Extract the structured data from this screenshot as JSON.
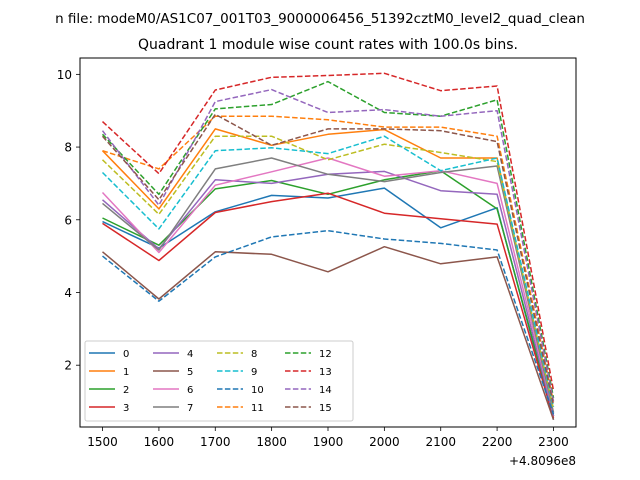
{
  "chart_data": {
    "type": "line",
    "suptitle": "n file: modeM0/AS1C07_001T03_9000006456_51392cztM0_level2_quad_clean",
    "title": "Quadrant 1 module wise count rates with 100.0s bins.",
    "xlabel": "",
    "ylabel": "",
    "x_offset_label": "+4.8096e8",
    "x": [
      1500,
      1600,
      1700,
      1800,
      1900,
      2000,
      2100,
      2200,
      2300
    ],
    "xlim": [
      1460,
      2340
    ],
    "ylim": [
      0.3,
      10.45
    ],
    "xticks": [
      1500,
      1600,
      1700,
      1800,
      1900,
      2000,
      2100,
      2200,
      2300
    ],
    "yticks": [
      2,
      4,
      6,
      8,
      10
    ],
    "grid": false,
    "legend_placement": "lower-left",
    "series": [
      {
        "name": "0",
        "color": "#1f77b4",
        "style": "solid",
        "values": [
          5.95,
          5.22,
          6.22,
          6.67,
          6.6,
          6.87,
          5.78,
          6.33,
          0.5
        ]
      },
      {
        "name": "1",
        "color": "#ff7f0e",
        "style": "solid",
        "values": [
          7.9,
          6.3,
          8.5,
          8.05,
          8.35,
          8.48,
          7.7,
          7.7,
          0.6
        ]
      },
      {
        "name": "2",
        "color": "#2ca02c",
        "style": "solid",
        "values": [
          6.05,
          5.3,
          6.85,
          7.08,
          6.7,
          7.1,
          7.35,
          6.3,
          0.6
        ]
      },
      {
        "name": "3",
        "color": "#d62728",
        "style": "solid",
        "values": [
          5.9,
          4.88,
          6.2,
          6.5,
          6.73,
          6.18,
          6.03,
          5.88,
          0.55
        ]
      },
      {
        "name": "4",
        "color": "#9467bd",
        "style": "solid",
        "values": [
          6.55,
          5.2,
          7.1,
          7.0,
          7.25,
          7.33,
          6.8,
          6.7,
          0.6
        ]
      },
      {
        "name": "5",
        "color": "#8c564b",
        "style": "solid",
        "values": [
          5.12,
          3.82,
          5.12,
          5.05,
          4.57,
          5.26,
          4.79,
          4.98,
          0.5
        ]
      },
      {
        "name": "6",
        "color": "#e377c2",
        "style": "solid",
        "values": [
          6.75,
          5.1,
          6.95,
          7.32,
          7.7,
          7.2,
          7.35,
          7.0,
          0.7
        ]
      },
      {
        "name": "7",
        "color": "#7f7f7f",
        "style": "solid",
        "values": [
          6.45,
          5.17,
          7.4,
          7.7,
          7.25,
          7.05,
          7.3,
          7.48,
          0.7
        ]
      },
      {
        "name": "8",
        "color": "#bcbd22",
        "style": "dashed",
        "values": [
          7.65,
          6.15,
          8.3,
          8.3,
          7.65,
          8.08,
          7.85,
          7.6,
          0.8
        ]
      },
      {
        "name": "9",
        "color": "#17becf",
        "style": "dashed",
        "values": [
          7.3,
          5.75,
          7.9,
          7.98,
          7.82,
          8.3,
          7.35,
          7.7,
          0.85
        ]
      },
      {
        "name": "10",
        "color": "#1f77b4",
        "style": "dashed",
        "values": [
          5.0,
          3.76,
          4.98,
          5.53,
          5.7,
          5.47,
          5.35,
          5.17,
          0.65
        ]
      },
      {
        "name": "11",
        "color": "#ff7f0e",
        "style": "dashed",
        "values": [
          7.9,
          7.4,
          8.85,
          8.85,
          8.75,
          8.55,
          8.55,
          8.3,
          1.0
        ]
      },
      {
        "name": "12",
        "color": "#2ca02c",
        "style": "dashed",
        "values": [
          8.35,
          6.7,
          9.05,
          9.17,
          9.8,
          8.95,
          8.85,
          9.3,
          1.1
        ]
      },
      {
        "name": "13",
        "color": "#d62728",
        "style": "dashed",
        "values": [
          8.7,
          7.27,
          9.57,
          9.92,
          9.97,
          10.03,
          9.55,
          9.68,
          1.3
        ]
      },
      {
        "name": "14",
        "color": "#9467bd",
        "style": "dashed",
        "values": [
          8.45,
          6.4,
          9.25,
          9.58,
          8.95,
          9.03,
          8.85,
          9.0,
          1.0
        ]
      },
      {
        "name": "15",
        "color": "#8c564b",
        "style": "dashed",
        "values": [
          8.3,
          6.55,
          8.9,
          8.05,
          8.5,
          8.5,
          8.45,
          8.15,
          0.9
        ]
      }
    ]
  }
}
